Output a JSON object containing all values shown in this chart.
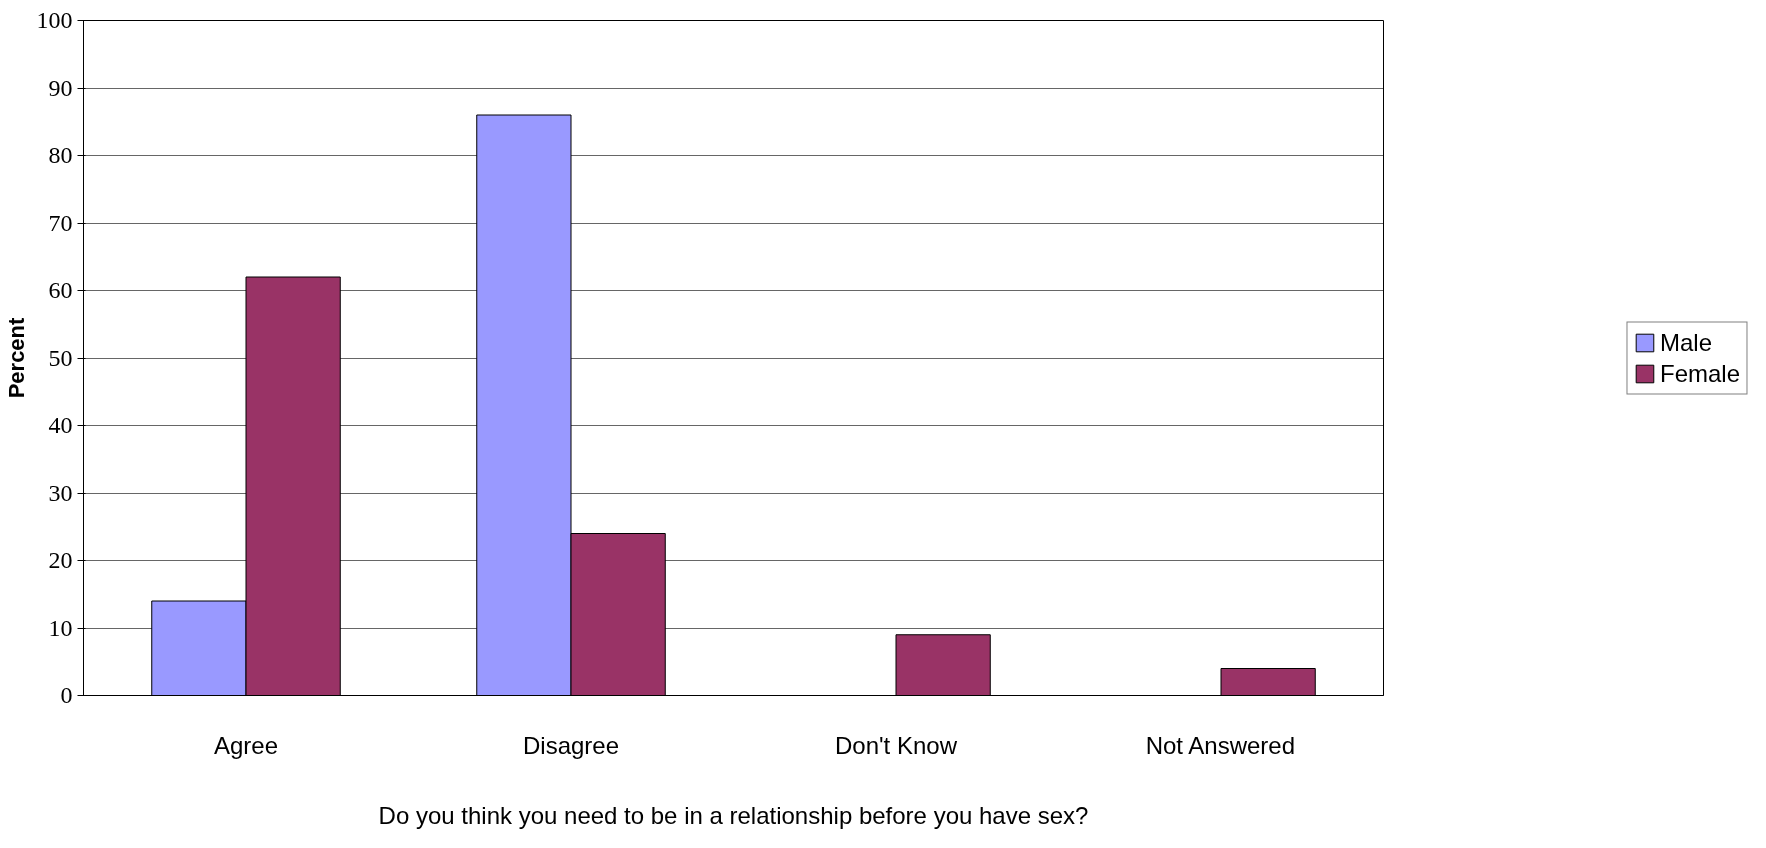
{
  "chart_data": {
    "type": "bar",
    "xlabel": "Do you think you need to be in a relationship before you have sex?",
    "ylabel": "Percent",
    "categories": [
      "Agree",
      "Disagree",
      "Don't Know",
      "Not Answered"
    ],
    "series": [
      {
        "name": "Male",
        "color": "#9999ff",
        "values": [
          14,
          86,
          null,
          null
        ]
      },
      {
        "name": "Female",
        "color": "#993366",
        "values": [
          62,
          24,
          9,
          4
        ]
      }
    ],
    "ylim": [
      0,
      100
    ],
    "yticks": [
      0,
      10,
      20,
      30,
      40,
      50,
      60,
      70,
      80,
      90,
      100
    ],
    "grid": "y",
    "legend": "right"
  }
}
